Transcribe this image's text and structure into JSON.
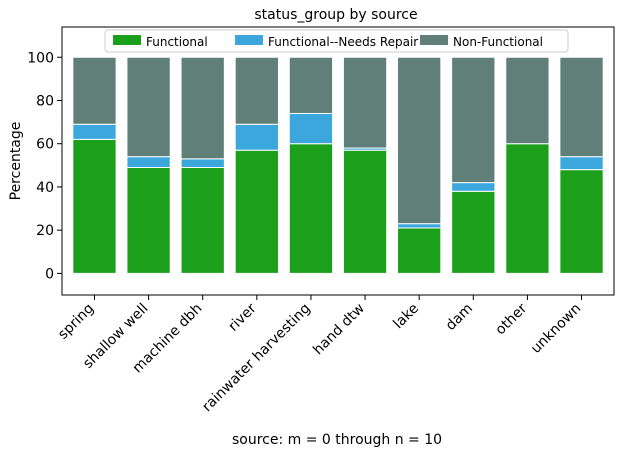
{
  "chart_data": {
    "type": "bar",
    "stacked": true,
    "title": "status_group by source",
    "xlabel": "source: m = 0 through n = 10",
    "ylabel": "Percentage",
    "ylim": [
      -10,
      114
    ],
    "yticks": [
      0,
      20,
      40,
      60,
      80,
      100
    ],
    "categories": [
      "spring",
      "shallow well",
      "machine dbh",
      "river",
      "rainwater harvesting",
      "hand dtw",
      "lake",
      "dam",
      "other",
      "unknown"
    ],
    "series": [
      {
        "name": "Functional",
        "color": "#1ca01c",
        "values": [
          62,
          49,
          49,
          57,
          60,
          57,
          21,
          38,
          60,
          48
        ]
      },
      {
        "name": "Functional--Needs Repair",
        "color": "#3ba7dd",
        "values": [
          7,
          5,
          4,
          12,
          14,
          1,
          2,
          4,
          0,
          6
        ]
      },
      {
        "name": "Non-Functional",
        "color": "#5f7f78",
        "values": [
          31,
          46,
          47,
          31,
          26,
          42,
          77,
          58,
          40,
          46
        ]
      }
    ],
    "legend_position": "top-center",
    "grid": false
  }
}
